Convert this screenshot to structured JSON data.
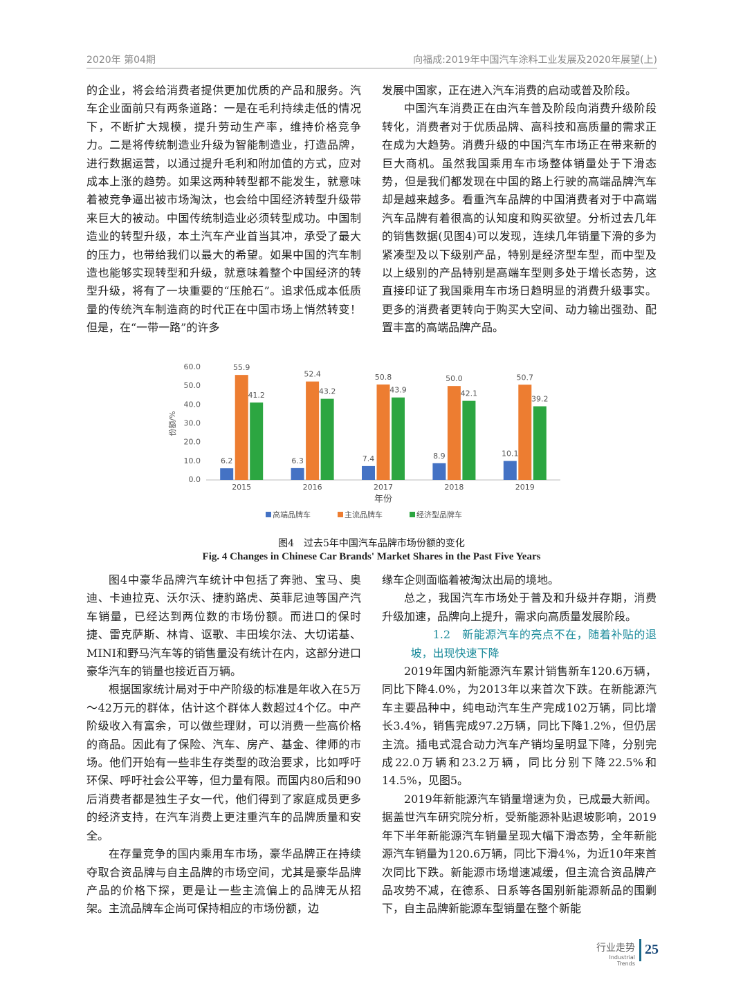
{
  "header": {
    "left": "2020年 第04期",
    "right": "向福成:2019年中国汽车涂料工业发展及2020年展望(上)"
  },
  "top_left": [
    "的企业，将会给消费者提供更加优质的产品和服务。汽车企业面前只有两条道路：一是在毛利持续走低的情况下，不断扩大规模，提升劳动生产率，维持价格竞争力。二是将传统制造业升级为智能制造业，打造品牌，进行数据运营，以通过提升毛利和附加值的方式，应对成本上涨的趋势。如果这两种转型都不能发生，就意味着被竞争逼出被市场淘汰，也会给中国经济转型升级带来巨大的被动。中国传统制造业必须转型成功。中国制造业的转型升级，本土汽车产业首当其冲，承受了最大的压力，也带给我们以最大的希望。如果中国的汽车制造也能够实现转型和升级，就意味着整个中国经济的转型升级，将有了一块重要的“压舱石”。追求低成本低质量的传统汽车制造商的时代正在中国市场上悄然转变！但是，在“一带一路”的许多"
  ],
  "top_right": [
    "发展中国家，正在进入汽车消费的启动或普及阶段。",
    "中国汽车消费正在由汽车普及阶段向消费升级阶段转化，消费者对于优质品牌、高科技和高质量的需求正在成为大趋势。消费升级的中国汽车市场正在带来新的巨大商机。虽然我国乘用车市场整体销量处于下滑态势，但是我们都发现在中国的路上行驶的高端品牌汽车却是越来越多。看重汽车品牌的中国消费者对于中高端汽车品牌有着很高的认知度和购买欲望。分析过去几年的销售数据(见图4)可以发现，连续几年销量下滑的多为紧凑型及以下级别产品，特别是经济型车型，而中型及以上级别的产品特别是高端车型则多处于增长态势，这直接印证了我国乘用车市场日趋明显的消费升级事实。更多的消费者更转向于购买大空间、动力输出强劲、配置丰富的高端品牌产品。"
  ],
  "chart_data": {
    "type": "bar",
    "y_label": "份额/%",
    "x_label": "年份",
    "categories": [
      "2015",
      "2016",
      "2017",
      "2018",
      "2019"
    ],
    "series": [
      {
        "name": "高端品牌车",
        "color": "#4472c4",
        "values": [
          6.2,
          6.3,
          7.4,
          8.9,
          10.1
        ],
        "value_labels": [
          "6.2",
          "6.3",
          "7.4",
          "8.9",
          "10.1"
        ]
      },
      {
        "name": "主流品牌车",
        "color": "#ed7d31",
        "values": [
          55.9,
          52.4,
          50.8,
          50.0,
          50.7
        ],
        "value_labels": [
          "55.9",
          "52.4",
          "50.8",
          "50.0",
          "50.7"
        ]
      },
      {
        "name": "经济型品牌车",
        "color": "#2ca641",
        "values": [
          41.2,
          43.2,
          43.9,
          42.1,
          39.2
        ],
        "value_labels": [
          "41.2",
          "43.2",
          "43.9",
          "42.1",
          "39.2"
        ]
      }
    ],
    "ylim": [
      0,
      60
    ],
    "yticks": [
      {
        "value": 0,
        "label": "0.0"
      },
      {
        "value": 10,
        "label": "10.0"
      },
      {
        "value": 20,
        "label": "20.0"
      },
      {
        "value": 30,
        "label": "30.0"
      },
      {
        "value": 40,
        "label": "40.0"
      },
      {
        "value": 50,
        "label": "50.0"
      },
      {
        "value": 60,
        "label": "60.0"
      }
    ],
    "grid": false,
    "legend": "bottom"
  },
  "caption": {
    "zh": "图4　过去5年中国汽车品牌市场份额的变化",
    "en": "Fig. 4   Changes in Chinese Car Brands' Market Shares in the Past Five Years"
  },
  "bottom_left": [
    "图4中豪华品牌汽车统计中包括了奔驰、宝马、奥迪、卡迪拉克、沃尔沃、捷豹路虎、英菲尼迪等国产汽车销量，已经达到两位数的市场份额。而进口的保时捷、雷克萨斯、林肯、讴歌、丰田埃尔法、大切诺基、MINI和野马汽车等的销售量没有统计在内，这部分进口豪华汽车的销量也接近百万辆。",
    "根据国家统计局对于中产阶级的标准是年收入在5万～42万元的群体，估计这个群体人数超过4个亿。中产阶级收入有富余，可以做些理财，可以消费一些高价格的商品。因此有了保险、汽车、房产、基金、律师的市场。他们开始有一些非生存类型的政治要求，比如呼吁环保、呼吁社会公平等，但力量有限。而国内80后和90后消费者都是独生子女一代，他们得到了家庭成员更多的经济支持，在汽车消费上更注重汽车的品牌质量和安全。",
    "在存量竞争的国内乘用车市场，豪华品牌正在持续夺取合资品牌与自主品牌的市场空间，尤其是豪华品牌产品的价格下探，更是让一些主流偏上的品牌无从招架。主流品牌车企尚可保持相应的市场份额，边"
  ],
  "bottom_right": {
    "p0": "缘车企则面临着被淘汰出局的境地。",
    "p1": "总之，我国汽车市场处于普及和升级并存期，消费升级加速，品牌向上提升，需求向高质量发展阶段。",
    "heading_no": "1.2",
    "heading": "新能源汽车的亮点不在，随着补贴的退坡，出现快速下降",
    "p2": "2019年国内新能源汽车累计销售新车120.6万辆，同比下降4.0%，为2013年以来首次下跌。在新能源汽车主要品种中，纯电动汽车生产完成102万辆，同比增长3.4%，销售完成97.2万辆，同比下降1.2%，但仍居主流。插电式混合动力汽车产销均呈明显下降，分别完成22.0万辆和23.2万辆，同比分别下降22.5%和14.5%，见图5。",
    "p3": "2019年新能源汽车销量增速为负，已成最大新闻。据盖世汽车研究院分析，受新能源补贴退坡影响，2019年下半年新能源汽车销量呈现大幅下滑态势，全年新能源汽车销量为120.6万辆，同比下滑4%，为近10年来首次同比下跌。新能源市场增速减缓，但主流合资品牌产品攻势不减，在德系、日系等各国别新能源新品的围剿下，自主品牌新能源车型销量在整个新能"
  },
  "footer": {
    "section": "行业走势",
    "section_en": "Industrial Trends",
    "page": "25"
  }
}
